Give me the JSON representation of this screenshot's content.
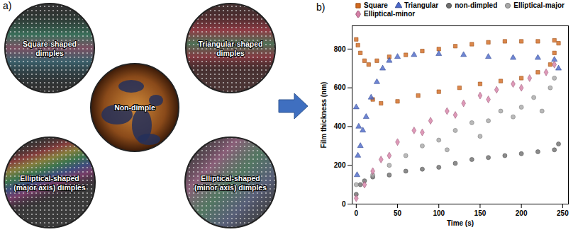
{
  "figure": {
    "panels": [
      {
        "label": "a)",
        "images": [
          {
            "lines": [
              "Square-shaped",
              "dimples"
            ]
          },
          {
            "lines": [
              "Non-dimple"
            ]
          },
          {
            "lines": [
              "Triangular-shaped",
              "dimples"
            ]
          },
          {
            "lines": [
              "Elliptical-shaped",
              "(major axis) dimples"
            ]
          },
          {
            "lines": [
              "Elliptical-shaped",
              "(minor axis) dimples"
            ]
          }
        ]
      },
      {
        "label": "b)"
      }
    ]
  },
  "chart_data": {
    "type": "scatter",
    "x_label": "Time (s)",
    "y_label": "Film thickness (nm)",
    "xlim": [
      -5,
      257
    ],
    "ylim": [
      0,
      920
    ],
    "xticks": [
      0,
      50,
      100,
      150,
      200,
      250
    ],
    "yticks": [
      0,
      200,
      400,
      600,
      800
    ],
    "legend": "top",
    "series": [
      {
        "name": "Square",
        "color": "#d2691e",
        "marker": "square",
        "x": [
          0,
          2,
          5,
          10,
          15,
          25,
          40,
          60,
          80,
          100,
          120,
          140,
          160,
          180,
          200,
          220,
          240,
          245,
          20,
          30,
          50,
          75,
          100,
          125,
          150,
          175,
          200,
          220,
          235,
          240
        ],
        "values": [
          850,
          820,
          780,
          740,
          720,
          740,
          760,
          770,
          790,
          800,
          815,
          825,
          835,
          840,
          840,
          840,
          845,
          830,
          540,
          520,
          530,
          560,
          580,
          600,
          620,
          635,
          650,
          680,
          720,
          780
        ]
      },
      {
        "name": "Triangular",
        "color": "#4a66c8",
        "marker": "triangle",
        "x": [
          0,
          1,
          2,
          3,
          5,
          8,
          12,
          18,
          25,
          32,
          40,
          50,
          70,
          100,
          130,
          160,
          190,
          220,
          240,
          245
        ],
        "values": [
          500,
          150,
          250,
          400,
          300,
          380,
          450,
          550,
          630,
          700,
          740,
          760,
          770,
          775,
          770,
          760,
          755,
          755,
          745,
          700
        ]
      },
      {
        "name": "non-dimpled",
        "color": "#6e6e6e",
        "marker": "circle",
        "x": [
          0,
          5,
          10,
          20,
          40,
          60,
          80,
          100,
          120,
          140,
          160,
          180,
          200,
          220,
          240,
          245
        ],
        "values": [
          50,
          100,
          120,
          140,
          150,
          170,
          180,
          190,
          210,
          230,
          240,
          250,
          260,
          270,
          280,
          310
        ]
      },
      {
        "name": "Elliptical-major",
        "color": "#a8a8a8",
        "marker": "circle",
        "x": [
          0,
          20,
          40,
          60,
          80,
          100,
          110,
          120,
          140,
          150,
          160,
          175,
          190,
          200,
          215,
          225,
          235,
          240
        ],
        "values": [
          100,
          150,
          200,
          250,
          300,
          330,
          280,
          380,
          420,
          350,
          430,
          480,
          450,
          500,
          550,
          480,
          600,
          650
        ]
      },
      {
        "name": "Elliptical-minor",
        "color": "#d67fa6",
        "marker": "diamond",
        "x": [
          0,
          10,
          20,
          30,
          50,
          70,
          90,
          110,
          130,
          150,
          170,
          190,
          210,
          230,
          240,
          40,
          80,
          120,
          160,
          200
        ],
        "values": [
          30,
          100,
          170,
          230,
          320,
          380,
          430,
          480,
          520,
          560,
          590,
          620,
          650,
          680,
          720,
          250,
          370,
          460,
          540,
          600
        ]
      }
    ]
  }
}
